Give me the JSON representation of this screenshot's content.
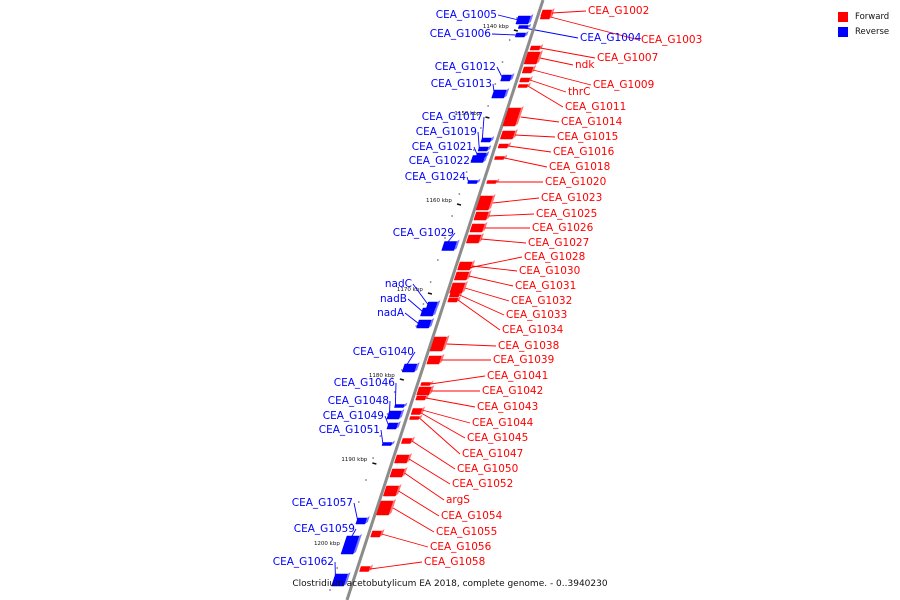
{
  "colors": {
    "forward": "#ff0000",
    "reverse": "#0000ff",
    "backbone": "#8c8c8c"
  },
  "legend": [
    {
      "label": "Forward",
      "color": "#ff0000"
    },
    {
      "label": "Reverse",
      "color": "#0000ff"
    }
  ],
  "caption": "Clostridium acetobutylicum EA 2018, complete genome. - 0..3940230",
  "kbp_ticks": [
    "1140 kbp",
    "1150 kbp",
    "1160 kbp",
    "1170 kbp",
    "1180 kbp",
    "1190 kbp",
    "1200 kbp"
  ],
  "forward_genes": [
    "CEA_G1002",
    "CEA_G1003",
    "CEA_G1007",
    "ndk",
    "CEA_G1009",
    "thrC",
    "CEA_G1011",
    "CEA_G1014",
    "CEA_G1015",
    "CEA_G1016",
    "CEA_G1018",
    "CEA_G1020",
    "CEA_G1023",
    "CEA_G1025",
    "CEA_G1026",
    "CEA_G1027",
    "CEA_G1028",
    "CEA_G1030",
    "CEA_G1031",
    "CEA_G1032",
    "CEA_G1033",
    "CEA_G1034",
    "CEA_G1038",
    "CEA_G1039",
    "CEA_G1041",
    "CEA_G1042",
    "CEA_G1043",
    "CEA_G1044",
    "CEA_G1045",
    "CEA_G1047",
    "CEA_G1050",
    "CEA_G1052",
    "argS",
    "CEA_G1054",
    "CEA_G1055",
    "CEA_G1056",
    "CEA_G1058"
  ],
  "reverse_genes": [
    "CEA_G1004",
    "CEA_G1005",
    "CEA_G1006",
    "CEA_G1012",
    "CEA_G1013",
    "CEA_G1017",
    "CEA_G1019",
    "CEA_G1021",
    "CEA_G1022",
    "CEA_G1024",
    "CEA_G1029",
    "nadC",
    "nadB",
    "nadA",
    "CEA_G1040",
    "CEA_G1046",
    "CEA_G1048",
    "CEA_G1049",
    "CEA_G1051",
    "CEA_G1057",
    "CEA_G1059",
    "CEA_G1062"
  ]
}
